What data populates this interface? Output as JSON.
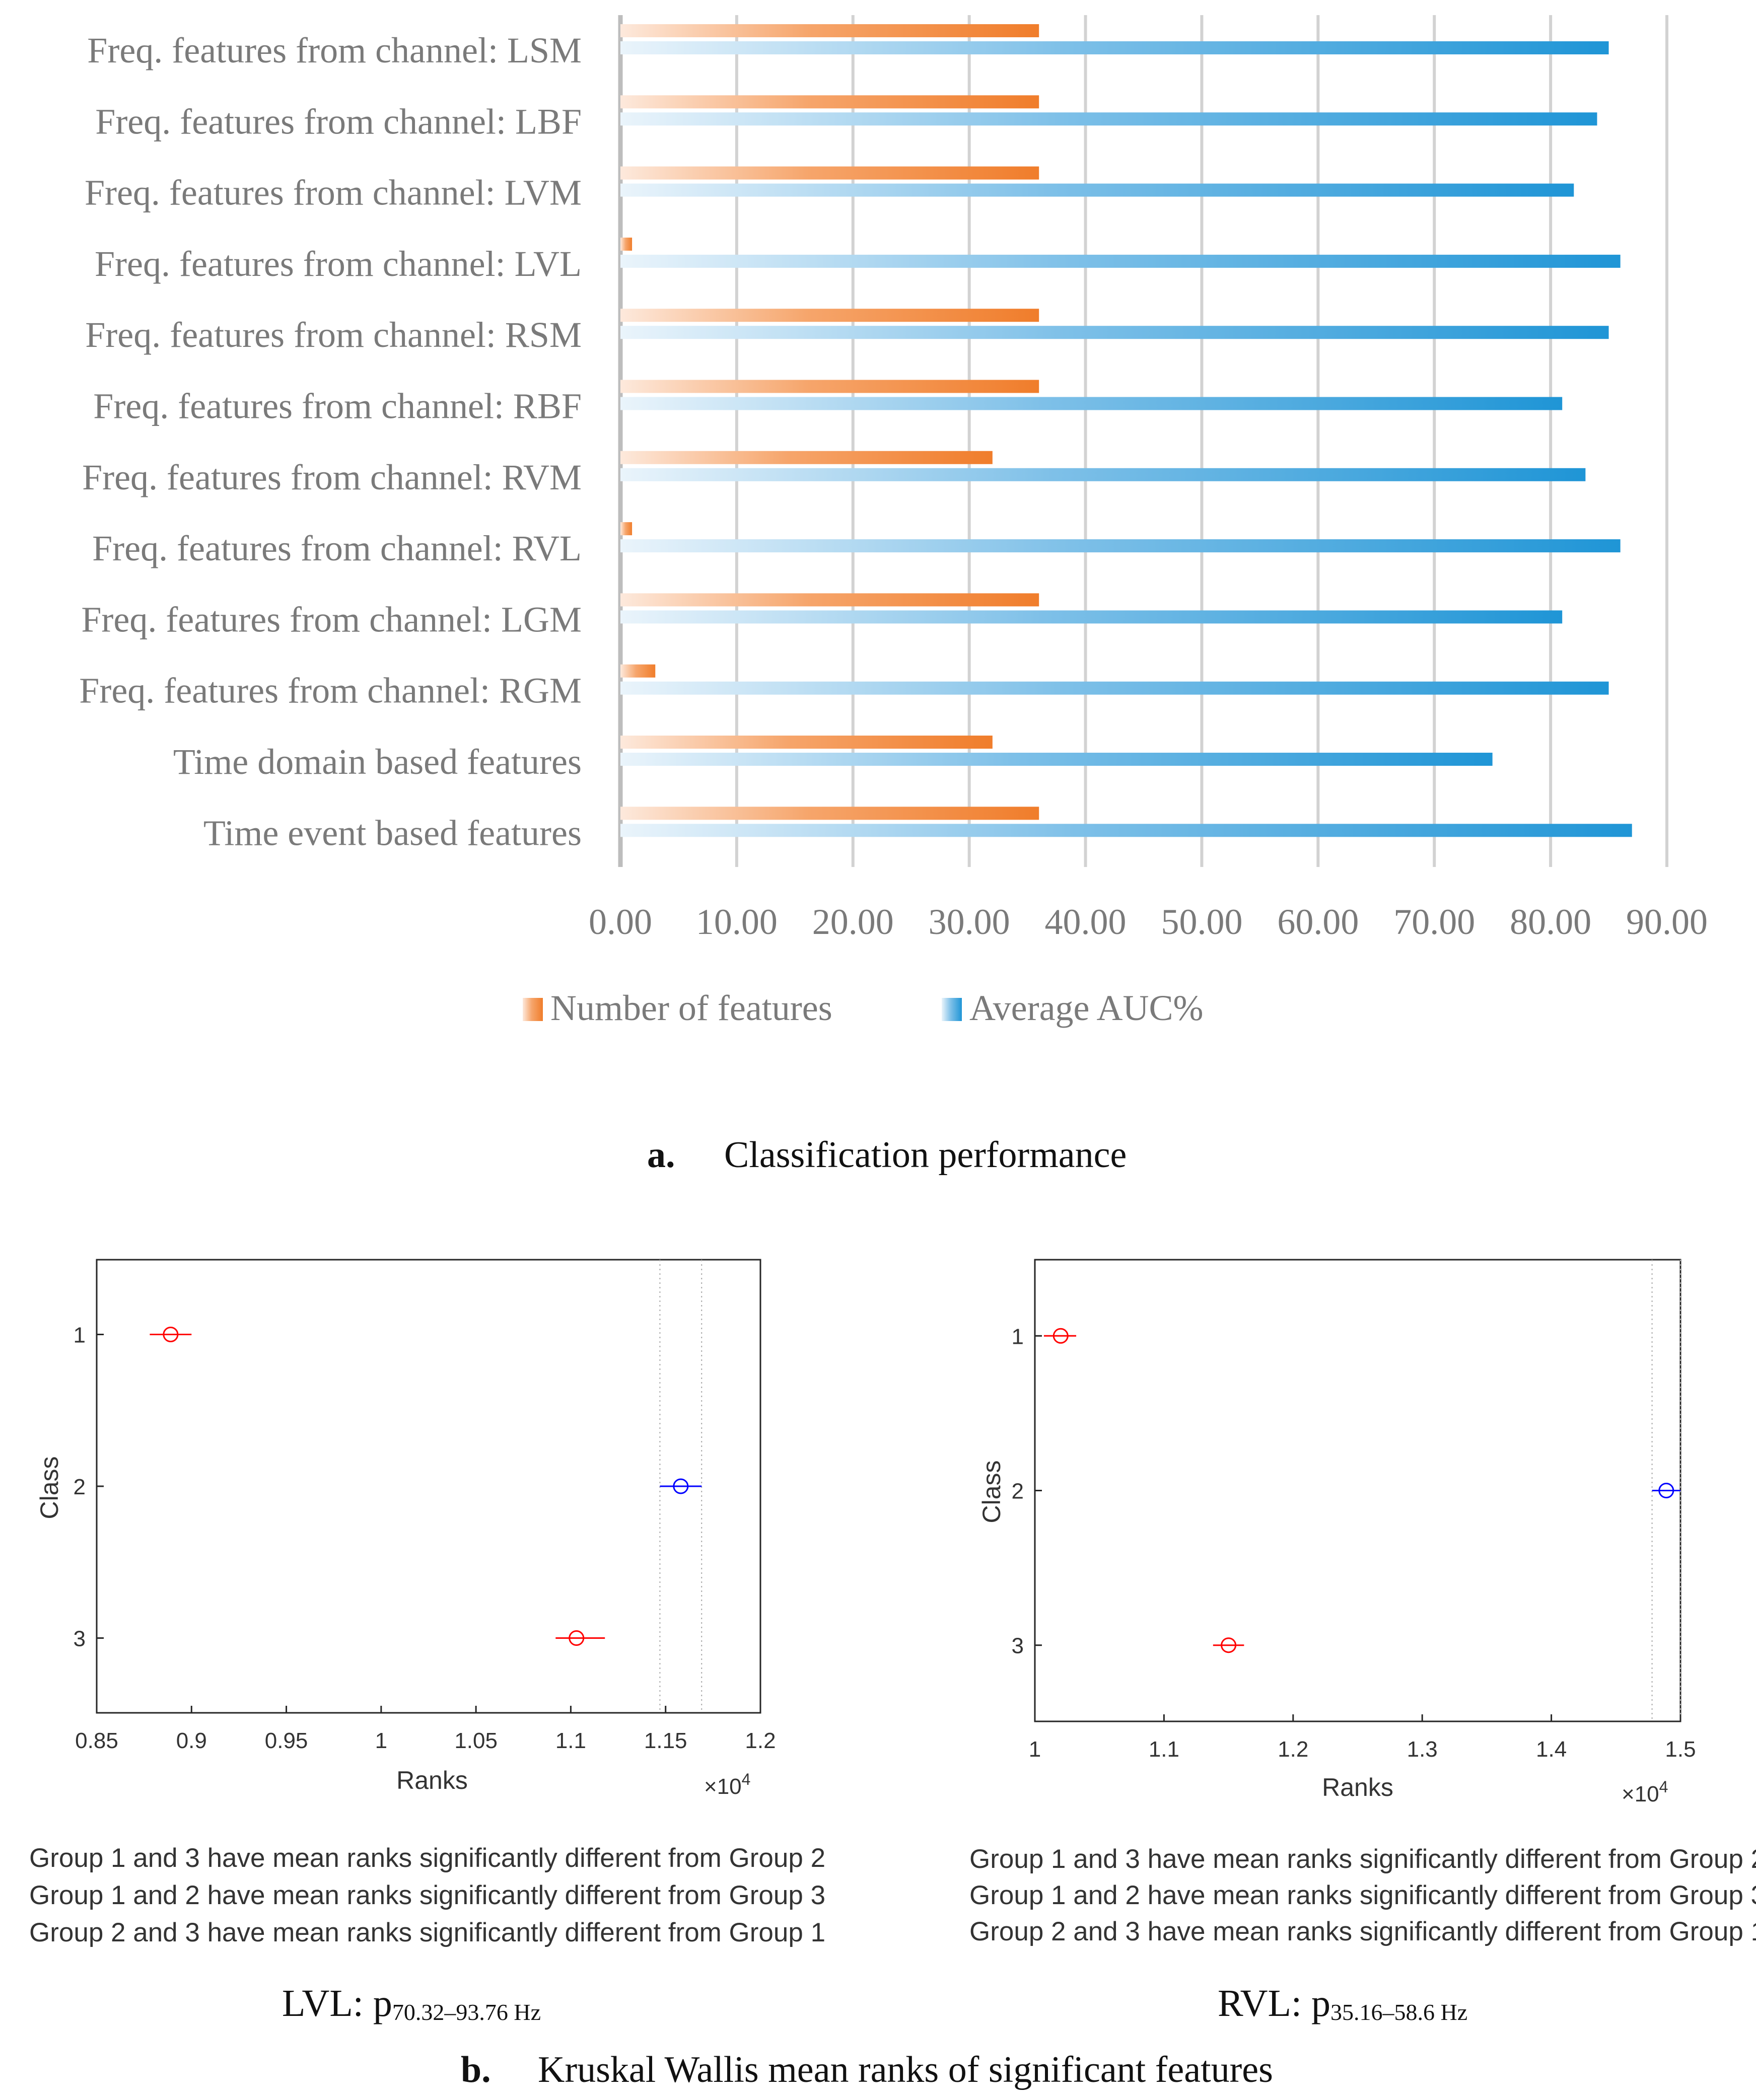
{
  "chart_data": [
    {
      "type": "bar",
      "orientation": "horizontal",
      "categories": [
        "Freq. features from channel: LSM",
        "Freq. features from channel: LBF",
        "Freq. features from channel: LVM",
        "Freq. features from channel: LVL",
        "Freq. features from channel: RSM",
        "Freq. features from channel: RBF",
        "Freq. features from channel: RVM",
        "Freq. features from channel: RVL",
        "Freq. features from channel: LGM",
        "Freq. features from channel: RGM",
        "Time domain based features",
        "Time event based features"
      ],
      "series": [
        {
          "name": "Number of features",
          "color": "#f28a3c",
          "values": [
            36,
            36,
            36,
            1,
            36,
            36,
            32,
            1,
            36,
            3,
            32,
            36
          ]
        },
        {
          "name": "Average AUC%",
          "color": "#2a9ad8",
          "values": [
            85,
            84,
            82,
            86,
            85,
            81,
            83,
            86,
            81,
            85,
            75,
            87
          ]
        }
      ],
      "xlim": [
        0,
        90
      ],
      "xticks": [
        "0.00",
        "10.00",
        "20.00",
        "30.00",
        "40.00",
        "50.00",
        "60.00",
        "70.00",
        "80.00",
        "90.00"
      ],
      "grid": true,
      "legend": "bottom-center",
      "caption_letter": "a.",
      "caption_text": "Classification performance"
    },
    {
      "type": "scatter",
      "title": "LVL",
      "xlabel": "Ranks",
      "ylabel": "Class",
      "xlim": [
        0.85,
        1.2
      ],
      "x_exponent": "×10^4",
      "xticks": [
        "0.85",
        "0.9",
        "0.95",
        "1",
        "1.05",
        "1.1",
        "1.15",
        "1.2"
      ],
      "yticks": [
        "1",
        "2",
        "3"
      ],
      "points": [
        {
          "class": 1,
          "mean": 0.889,
          "low": 0.878,
          "high": 0.9,
          "color": "#ff0000"
        },
        {
          "class": 2,
          "mean": 1.158,
          "low": 1.147,
          "high": 1.169,
          "color": "#0000ff"
        },
        {
          "class": 3,
          "mean": 1.103,
          "low": 1.092,
          "high": 1.118,
          "color": "#ff0000"
        }
      ],
      "ref_lines": [
        1.147,
        1.169
      ],
      "notes": [
        "Group 1 and 3 have mean ranks significantly different from Group 2",
        "Group 1 and 2 have mean ranks significantly different from Group 3",
        "Group 2 and 3 have mean ranks significantly different from Group 1"
      ],
      "label_main": "LVL: p",
      "label_sub": "70.32–93.76 Hz"
    },
    {
      "type": "scatter",
      "title": "RVL",
      "xlabel": "Ranks",
      "ylabel": "Class",
      "xlim": [
        1.0,
        1.5
      ],
      "x_exponent": "×10^4",
      "xticks": [
        "1",
        "1.1",
        "1.2",
        "1.3",
        "1.4",
        "1.5"
      ],
      "yticks": [
        "1",
        "2",
        "3"
      ],
      "points": [
        {
          "class": 1,
          "mean": 1.02,
          "low": 1.007,
          "high": 1.032,
          "color": "#ff0000"
        },
        {
          "class": 2,
          "mean": 1.489,
          "low": 1.478,
          "high": 1.5,
          "color": "#0000ff"
        },
        {
          "class": 3,
          "mean": 1.15,
          "low": 1.138,
          "high": 1.162,
          "color": "#ff0000"
        }
      ],
      "ref_lines": [
        1.478,
        1.5
      ],
      "notes": [
        "Group 1 and 3 have mean ranks significantly different from Group 2",
        "Group 1 and 2 have mean ranks significantly different from Group 3",
        "Group 2 and 3 have mean ranks significantly different from Group 1"
      ],
      "label_main": "RVL: p",
      "label_sub": "35.16–58.6 Hz"
    }
  ],
  "caption_b": {
    "letter": "b.",
    "text": "Kruskal Wallis mean ranks of significant features"
  },
  "exponent": {
    "base": "×10",
    "power": "4"
  }
}
